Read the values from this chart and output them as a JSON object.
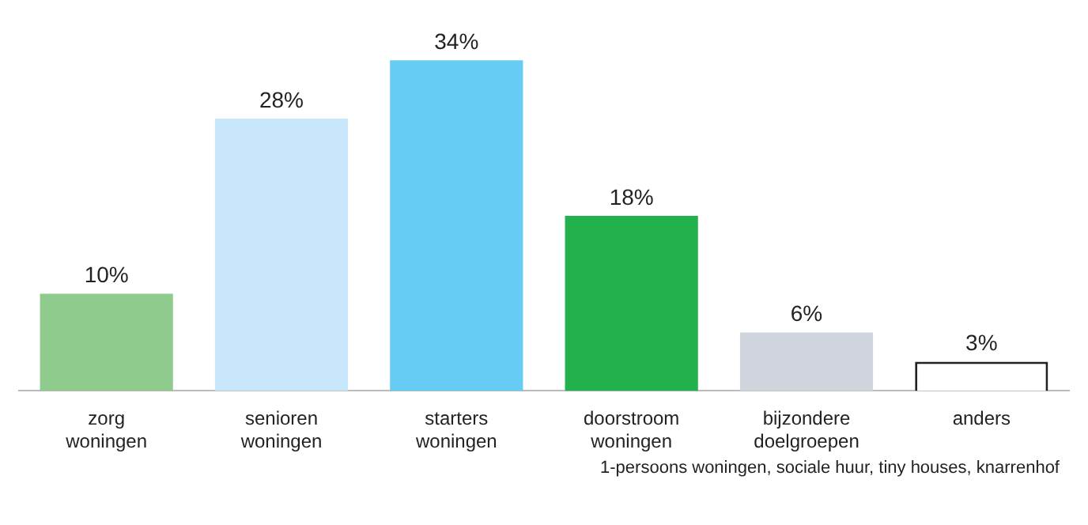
{
  "chart_data": {
    "type": "bar",
    "categories": [
      "zorg woningen",
      "senioren woningen",
      "starters woningen",
      "doorstroom woningen",
      "bijzondere doelgroepen",
      "anders"
    ],
    "values": [
      10,
      28,
      34,
      18,
      6,
      3
    ],
    "colors": [
      "#8fcb8c",
      "#c8e7fa",
      "#66ccf3",
      "#22b14c",
      "#d0d4dc",
      "#ffffff"
    ],
    "value_labels": [
      "10%",
      "28%",
      "34%",
      "18%",
      "6%",
      "3%"
    ],
    "annotations": [
      "1-persoons woningen, sociale huur, tiny houses, knarrenhof"
    ]
  }
}
